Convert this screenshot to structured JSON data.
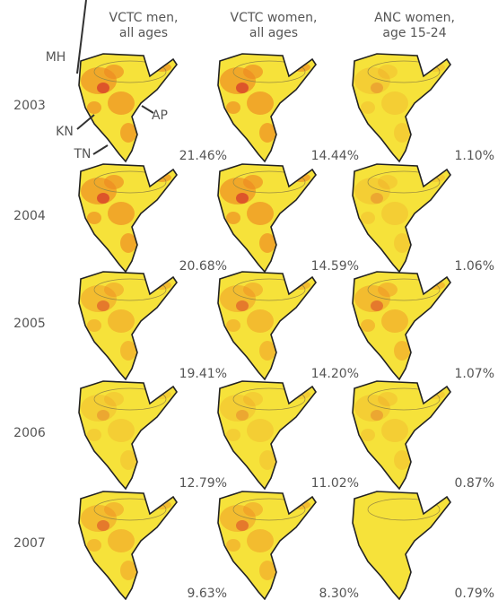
{
  "columns": [
    {
      "line1": "VCTC men,",
      "line2": "all ages"
    },
    {
      "line1": "VCTC women,",
      "line2": "all ages"
    },
    {
      "line1": "ANC women,",
      "line2": "age 15-24"
    }
  ],
  "rows": [
    {
      "year": "2003",
      "values": [
        "21.46%",
        "14.44%",
        "1.10%"
      ]
    },
    {
      "year": "2004",
      "values": [
        "20.68%",
        "14.59%",
        "1.06%"
      ]
    },
    {
      "year": "2005",
      "values": [
        "19.41%",
        "14.20%",
        "1.07%"
      ]
    },
    {
      "year": "2006",
      "values": [
        "12.79%",
        "11.02%",
        "0.87%"
      ]
    },
    {
      "year": "2007",
      "values": [
        "9.63%",
        "8.30%",
        "0.79%"
      ]
    }
  ],
  "state_labels": {
    "MH": "MH",
    "KN": "KN",
    "TN": "TN",
    "AP": "AP"
  }
}
